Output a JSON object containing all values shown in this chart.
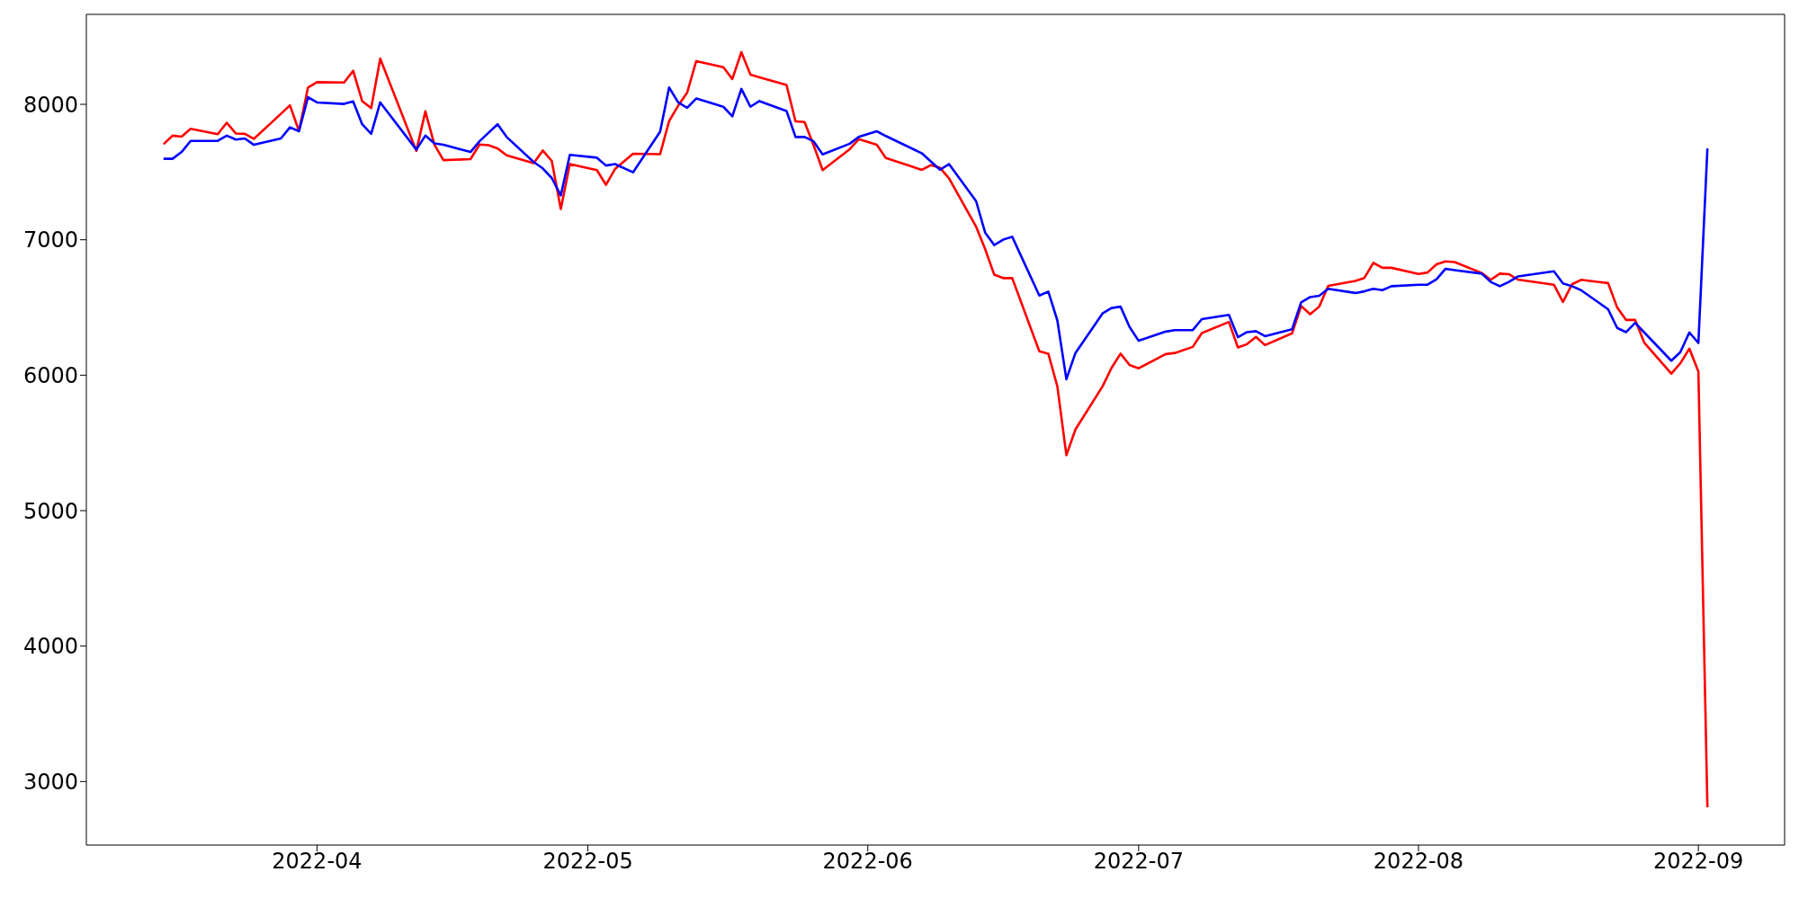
{
  "chart_data": {
    "type": "line",
    "x": [
      "2022-03-15",
      "2022-03-16",
      "2022-03-17",
      "2022-03-18",
      "2022-03-21",
      "2022-03-22",
      "2022-03-23",
      "2022-03-24",
      "2022-03-25",
      "2022-03-28",
      "2022-03-29",
      "2022-03-30",
      "2022-03-31",
      "2022-04-01",
      "2022-04-04",
      "2022-04-05",
      "2022-04-06",
      "2022-04-07",
      "2022-04-08",
      "2022-04-12",
      "2022-04-13",
      "2022-04-14",
      "2022-04-15",
      "2022-04-18",
      "2022-04-19",
      "2022-04-20",
      "2022-04-21",
      "2022-04-22",
      "2022-04-25",
      "2022-04-26",
      "2022-04-27",
      "2022-04-28",
      "2022-04-29",
      "2022-05-02",
      "2022-05-03",
      "2022-05-04",
      "2022-05-06",
      "2022-05-09",
      "2022-05-10",
      "2022-05-11",
      "2022-05-12",
      "2022-05-13",
      "2022-05-16",
      "2022-05-17",
      "2022-05-18",
      "2022-05-19",
      "2022-05-20",
      "2022-05-23",
      "2022-05-24",
      "2022-05-25",
      "2022-05-26",
      "2022-05-27",
      "2022-05-30",
      "2022-05-31",
      "2022-06-02",
      "2022-06-03",
      "2022-06-07",
      "2022-06-08",
      "2022-06-09",
      "2022-06-10",
      "2022-06-13",
      "2022-06-14",
      "2022-06-15",
      "2022-06-16",
      "2022-06-17",
      "2022-06-20",
      "2022-06-21",
      "2022-06-22",
      "2022-06-23",
      "2022-06-24",
      "2022-06-27",
      "2022-06-28",
      "2022-06-29",
      "2022-06-30",
      "2022-07-01",
      "2022-07-04",
      "2022-07-05",
      "2022-07-07",
      "2022-07-08",
      "2022-07-11",
      "2022-07-12",
      "2022-07-13",
      "2022-07-14",
      "2022-07-15",
      "2022-07-18",
      "2022-07-19",
      "2022-07-20",
      "2022-07-21",
      "2022-07-22",
      "2022-07-25",
      "2022-07-26",
      "2022-07-27",
      "2022-07-28",
      "2022-07-29",
      "2022-08-01",
      "2022-08-02",
      "2022-08-03",
      "2022-08-04",
      "2022-08-05",
      "2022-08-08",
      "2022-08-09",
      "2022-08-10",
      "2022-08-11",
      "2022-08-12",
      "2022-08-16",
      "2022-08-17",
      "2022-08-18",
      "2022-08-19",
      "2022-08-22",
      "2022-08-23",
      "2022-08-24",
      "2022-08-25",
      "2022-08-26",
      "2022-08-29",
      "2022-08-30",
      "2022-08-31",
      "2022-09-01",
      "2022-09-02"
    ],
    "series": [
      {
        "color": "#ff0000",
        "values": [
          7706,
          7769,
          7761,
          7819,
          7780,
          7864,
          7785,
          7782,
          7745,
          7930,
          7993,
          7803,
          8124,
          8164,
          8161,
          8248,
          8024,
          7972,
          8337,
          7656,
          7948,
          7703,
          7588,
          7595,
          7703,
          7698,
          7674,
          7624,
          7566,
          7659,
          7582,
          7227,
          7559,
          7514,
          7406,
          7522,
          7635,
          7632,
          7877,
          7990,
          8087,
          8319,
          8274,
          8187,
          8385,
          8219,
          8200,
          8143,
          7874,
          7869,
          7698,
          7514,
          7669,
          7743,
          7701,
          7603,
          7516,
          7551,
          7532,
          7453,
          7096,
          6932,
          6743,
          6717,
          6717,
          6177,
          6159,
          5917,
          5409,
          5599,
          5917,
          6054,
          6159,
          6075,
          6051,
          6156,
          6164,
          6209,
          6311,
          6393,
          6205,
          6229,
          6283,
          6222,
          6309,
          6511,
          6450,
          6506,
          6659,
          6696,
          6718,
          6830,
          6793,
          6793,
          6748,
          6758,
          6819,
          6840,
          6835,
          6755,
          6704,
          6750,
          6746,
          6706,
          6668,
          6541,
          6671,
          6704,
          6680,
          6501,
          6408,
          6408,
          6241,
          6011,
          6088,
          6196,
          6027,
          2810
        ]
      },
      {
        "color": "#0000ff",
        "values": [
          7598,
          7598,
          7648,
          7730,
          7730,
          7769,
          7740,
          7748,
          7701,
          7748,
          7830,
          7801,
          8053,
          8014,
          8003,
          8022,
          7853,
          7782,
          8014,
          7666,
          7769,
          7711,
          7701,
          7648,
          7727,
          7790,
          7853,
          7759,
          7574,
          7527,
          7456,
          7327,
          7627,
          7606,
          7548,
          7559,
          7498,
          7798,
          8124,
          8014,
          7974,
          8043,
          7982,
          7911,
          8114,
          7982,
          8024,
          7951,
          7759,
          7759,
          7727,
          7630,
          7709,
          7759,
          7801,
          7766,
          7638,
          7577,
          7517,
          7559,
          7285,
          7053,
          6961,
          7001,
          7022,
          6588,
          6617,
          6404,
          5970,
          6164,
          6456,
          6496,
          6506,
          6356,
          6254,
          6322,
          6333,
          6333,
          6414,
          6445,
          6281,
          6318,
          6325,
          6288,
          6339,
          6537,
          6577,
          6586,
          6638,
          6607,
          6619,
          6638,
          6628,
          6657,
          6668,
          6668,
          6708,
          6786,
          6776,
          6750,
          6689,
          6657,
          6689,
          6729,
          6767,
          6678,
          6657,
          6628,
          6487,
          6349,
          6318,
          6386,
          6316,
          6107,
          6170,
          6316,
          6238,
          7674
        ]
      }
    ],
    "xlim": [
      "2022-03-06T10:48",
      "2022-09-10T13:12"
    ],
    "xticks": [
      "2022-04",
      "2022-05",
      "2022-06",
      "2022-07",
      "2022-08",
      "2022-09"
    ],
    "ylim": [
      2531,
      8664
    ],
    "yticks": [
      3000,
      4000,
      5000,
      6000,
      7000,
      8000
    ],
    "grid": false,
    "legend": false
  }
}
